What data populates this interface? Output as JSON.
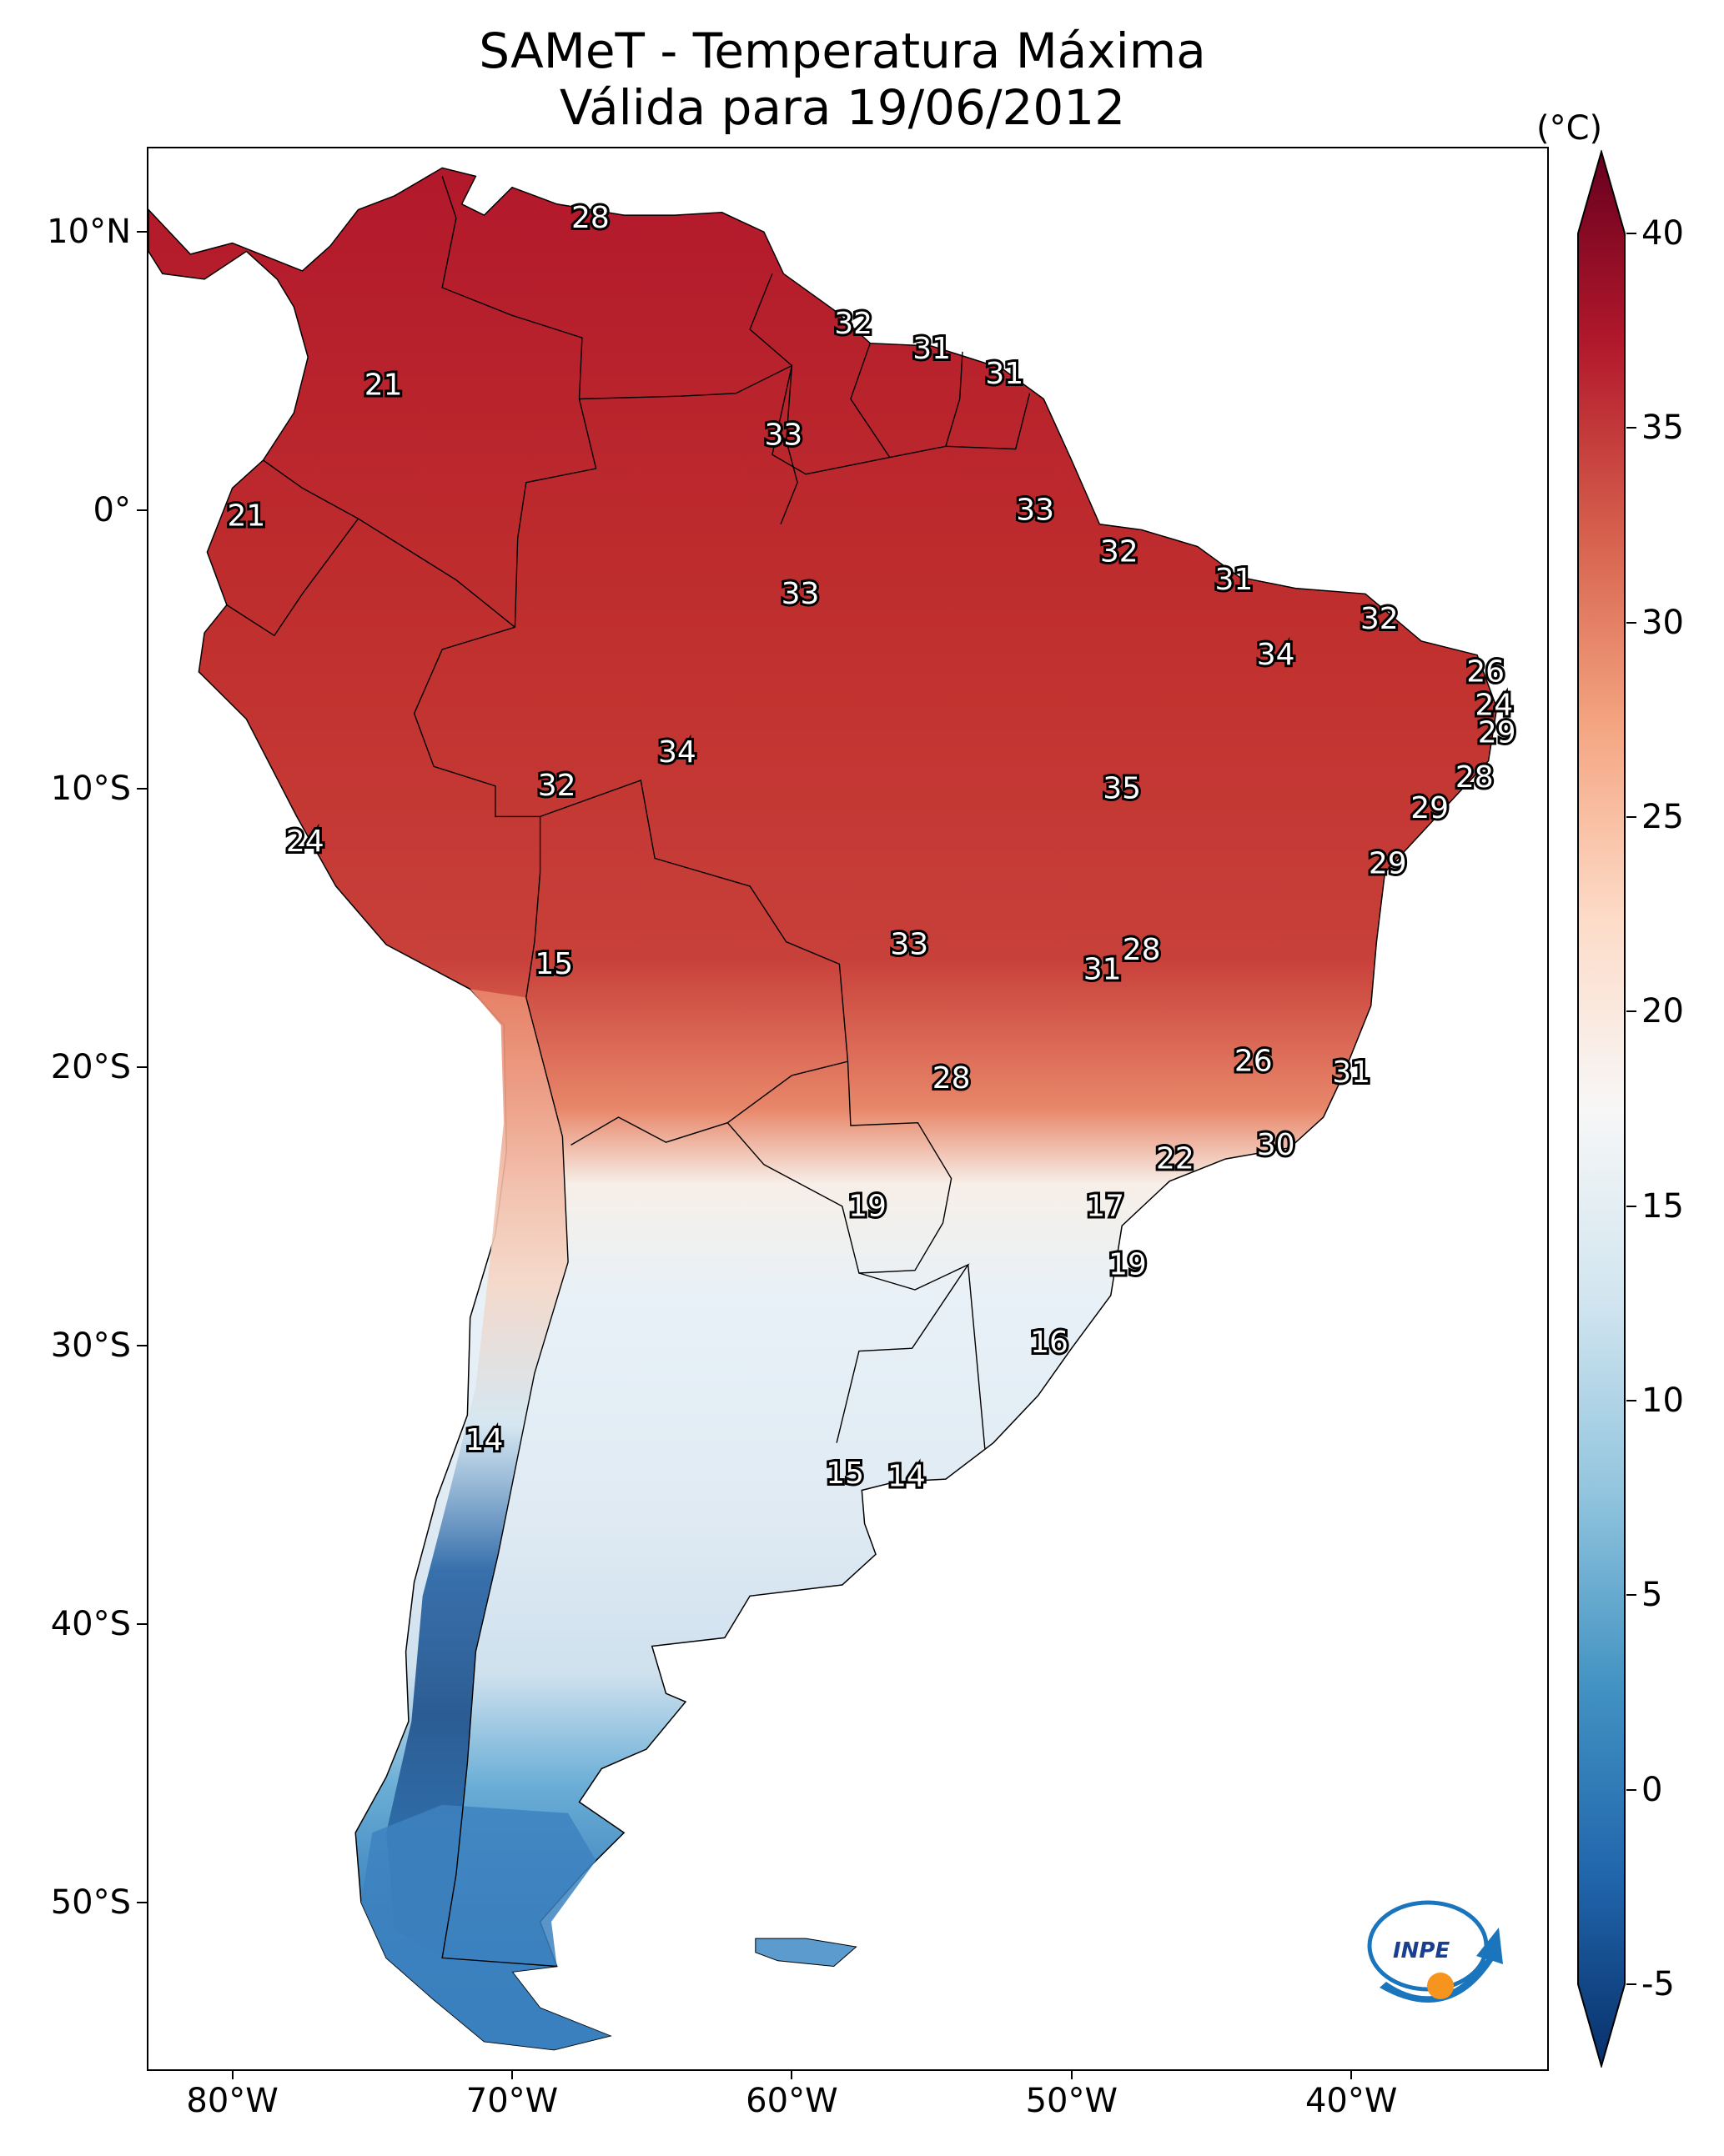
{
  "title": {
    "line1": "SAMeT - Temperatura Máxima",
    "line2": "Válida para 19/06/2012"
  },
  "axes": {
    "lat_ticks": [
      {
        "label": "10°N",
        "lat": 10
      },
      {
        "label": "0°",
        "lat": 0
      },
      {
        "label": "10°S",
        "lat": -10
      },
      {
        "label": "20°S",
        "lat": -20
      },
      {
        "label": "30°S",
        "lat": -30
      },
      {
        "label": "40°S",
        "lat": -40
      },
      {
        "label": "50°S",
        "lat": -50
      }
    ],
    "lon_ticks": [
      {
        "label": "80°W",
        "lon": -80
      },
      {
        "label": "70°W",
        "lon": -70
      },
      {
        "label": "60°W",
        "lon": -60
      },
      {
        "label": "50°W",
        "lon": -50
      },
      {
        "label": "40°W",
        "lon": -40
      }
    ],
    "lon_range": [
      -83,
      -33
    ],
    "lat_range": [
      -56,
      13
    ]
  },
  "colorbar": {
    "unit": "(°C)",
    "min": -5,
    "max": 40,
    "ticks": [
      {
        "label": "40",
        "value": 40
      },
      {
        "label": "35",
        "value": 35
      },
      {
        "label": "30",
        "value": 30
      },
      {
        "label": "25",
        "value": 25
      },
      {
        "label": "20",
        "value": 20
      },
      {
        "label": "15",
        "value": 15
      },
      {
        "label": "10",
        "value": 10
      },
      {
        "label": "5",
        "value": 5
      },
      {
        "label": "0",
        "value": 0
      },
      {
        "label": "-5",
        "value": -5
      }
    ],
    "colors": [
      "#08306b",
      "#2166ac",
      "#4393c3",
      "#92c5de",
      "#d1e5f0",
      "#f7f7f7",
      "#fddbc7",
      "#f4a582",
      "#d6604d",
      "#b2182b",
      "#67001f"
    ]
  },
  "contour_labels": [
    {
      "text": "28",
      "lon": -67.2,
      "lat": 10.5
    },
    {
      "text": "21",
      "lon": -74.6,
      "lat": 4.5
    },
    {
      "text": "32",
      "lon": -57.8,
      "lat": 6.7
    },
    {
      "text": "31",
      "lon": -55.0,
      "lat": 5.8
    },
    {
      "text": "31",
      "lon": -52.4,
      "lat": 4.9
    },
    {
      "text": "33",
      "lon": -60.3,
      "lat": 2.7
    },
    {
      "text": "21",
      "lon": -79.5,
      "lat": -0.2
    },
    {
      "text": "33",
      "lon": -51.3,
      "lat": 0.0
    },
    {
      "text": "32",
      "lon": -48.3,
      "lat": -1.5
    },
    {
      "text": "33",
      "lon": -59.7,
      "lat": -3.0
    },
    {
      "text": "31",
      "lon": -44.2,
      "lat": -2.5
    },
    {
      "text": "32",
      "lon": -39.0,
      "lat": -3.9
    },
    {
      "text": "34",
      "lon": -42.7,
      "lat": -5.2
    },
    {
      "text": "26",
      "lon": -35.2,
      "lat": -5.8
    },
    {
      "text": "24",
      "lon": -34.9,
      "lat": -7.0
    },
    {
      "text": "29",
      "lon": -34.8,
      "lat": -8.0
    },
    {
      "text": "34",
      "lon": -64.1,
      "lat": -8.7
    },
    {
      "text": "28",
      "lon": -35.6,
      "lat": -9.6
    },
    {
      "text": "32",
      "lon": -68.4,
      "lat": -9.9
    },
    {
      "text": "35",
      "lon": -48.2,
      "lat": -10.0
    },
    {
      "text": "29",
      "lon": -37.2,
      "lat": -10.7
    },
    {
      "text": "24",
      "lon": -77.4,
      "lat": -11.9
    },
    {
      "text": "29",
      "lon": -38.7,
      "lat": -12.7
    },
    {
      "text": "15",
      "lon": -68.5,
      "lat": -16.3
    },
    {
      "text": "33",
      "lon": -55.8,
      "lat": -15.6
    },
    {
      "text": "28",
      "lon": -47.5,
      "lat": -15.8
    },
    {
      "text": "31",
      "lon": -48.9,
      "lat": -16.5
    },
    {
      "text": "26",
      "lon": -43.5,
      "lat": -19.8
    },
    {
      "text": "31",
      "lon": -40.0,
      "lat": -20.2
    },
    {
      "text": "28",
      "lon": -54.3,
      "lat": -20.4
    },
    {
      "text": "30",
      "lon": -42.7,
      "lat": -22.8
    },
    {
      "text": "22",
      "lon": -46.3,
      "lat": -23.3
    },
    {
      "text": "19",
      "lon": -57.3,
      "lat": -25.0
    },
    {
      "text": "17",
      "lon": -48.8,
      "lat": -25.0
    },
    {
      "text": "19",
      "lon": -48.0,
      "lat": -27.1
    },
    {
      "text": "16",
      "lon": -50.8,
      "lat": -29.9
    },
    {
      "text": "14",
      "lon": -71.0,
      "lat": -33.4
    },
    {
      "text": "15",
      "lon": -58.1,
      "lat": -34.6
    },
    {
      "text": "14",
      "lon": -55.9,
      "lat": -34.7
    }
  ],
  "logo": {
    "text": "INPE"
  }
}
